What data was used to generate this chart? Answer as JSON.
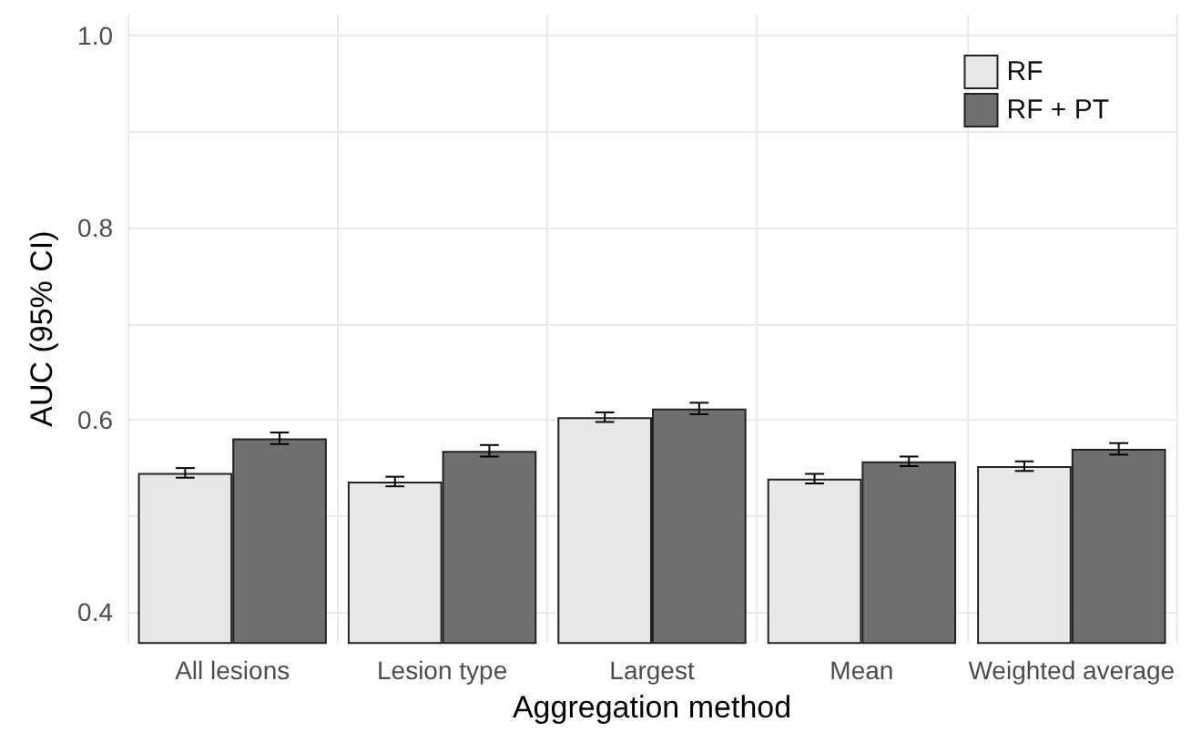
{
  "chart_data": {
    "type": "bar",
    "xlabel": "Aggregation method",
    "ylabel": "AUC (95% CI)",
    "categories": [
      "All lesions",
      "Lesion type",
      "Largest",
      "Mean",
      "Weighted average"
    ],
    "series": [
      {
        "name": "RF",
        "color": "#e8e8e8",
        "values": [
          0.545,
          0.536,
          0.603,
          0.539,
          0.552
        ],
        "errors": [
          0.005,
          0.005,
          0.005,
          0.005,
          0.005
        ]
      },
      {
        "name": "RF + PT",
        "color": "#707070",
        "values": [
          0.581,
          0.568,
          0.612,
          0.557,
          0.57
        ],
        "errors": [
          0.006,
          0.006,
          0.006,
          0.005,
          0.006
        ]
      }
    ],
    "ylim": [
      0.368,
      1.022
    ],
    "yticks": [
      0.4,
      {
        "value": 0.5,
        "label": null
      },
      0.6,
      {
        "value": 0.7,
        "label": null
      },
      0.8,
      {
        "value": 0.9,
        "label": null
      },
      {
        "value": 1.0,
        "label": "1.0"
      }
    ],
    "grid": true,
    "legend": "top right"
  }
}
